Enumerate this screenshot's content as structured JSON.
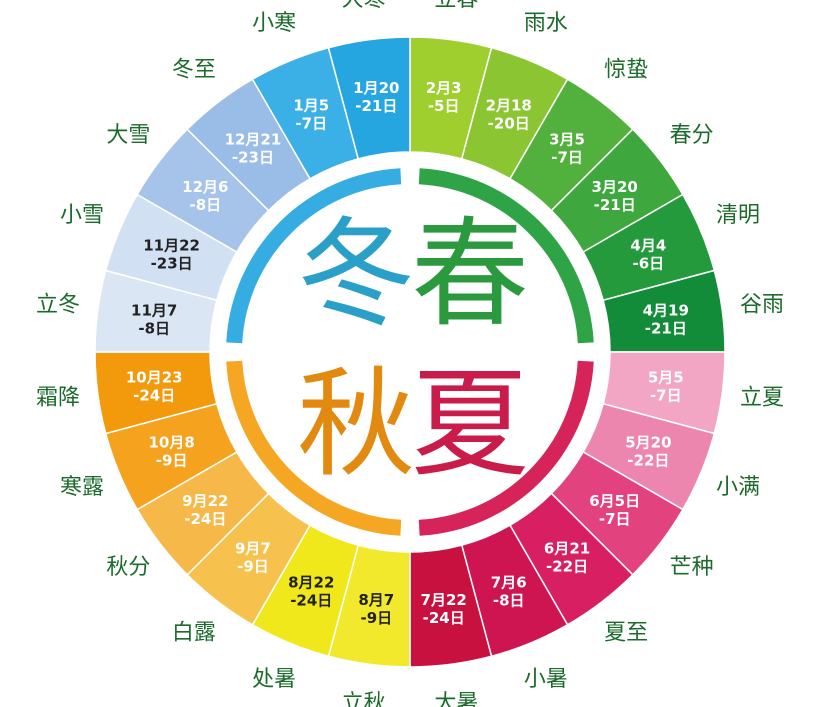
{
  "solar_terms": [
    {
      "name": "立春",
      "date": "2月3\n-5日",
      "color": "#9fce2f",
      "text_color": "#ffffff"
    },
    {
      "name": "雨水",
      "date": "2月18\n-20日",
      "color": "#8cc532",
      "text_color": "#ffffff"
    },
    {
      "name": "惊蛰",
      "date": "3月5\n-7日",
      "color": "#52b03c",
      "text_color": "#ffffff"
    },
    {
      "name": "春分",
      "date": "3月20\n-21日",
      "color": "#3ea73d",
      "text_color": "#ffffff"
    },
    {
      "name": "清明",
      "date": "4月4\n-6日",
      "color": "#249a3c",
      "text_color": "#ffffff"
    },
    {
      "name": "谷雨",
      "date": "4月19\n-21日",
      "color": "#128c39",
      "text_color": "#ffffff"
    },
    {
      "name": "立夏",
      "date": "5月5\n-7日",
      "color": "#f2a6c3",
      "text_color": "#ffffff"
    },
    {
      "name": "小满",
      "date": "5月20\n-22日",
      "color": "#ec86ae",
      "text_color": "#ffffff"
    },
    {
      "name": "芒种",
      "date": "6月5日\n-7日",
      "color": "#e2437f",
      "text_color": "#ffffff"
    },
    {
      "name": "夏至",
      "date": "6月21\n-22日",
      "color": "#d81f61",
      "text_color": "#ffffff"
    },
    {
      "name": "小暑",
      "date": "7月6\n-8日",
      "color": "#cf1452",
      "text_color": "#ffffff"
    },
    {
      "name": "大暑",
      "date": "7月22\n-24日",
      "color": "#c9113f",
      "text_color": "#ffffff"
    },
    {
      "name": "立秋",
      "date": "8月7\n-9日",
      "color": "#f2e92c",
      "text_color": "#222222"
    },
    {
      "name": "处暑",
      "date": "8月22\n-24日",
      "color": "#f0e81a",
      "text_color": "#222222"
    },
    {
      "name": "白露",
      "date": "9月7\n-9日",
      "color": "#f7c14d",
      "text_color": "#ffffff"
    },
    {
      "name": "秋分",
      "date": "9月22\n-24日",
      "color": "#f7b84a",
      "text_color": "#ffffff"
    },
    {
      "name": "寒露",
      "date": "10月8\n-9日",
      "color": "#f5a21f",
      "text_color": "#ffffff"
    },
    {
      "name": "霜降",
      "date": "10月23\n-24日",
      "color": "#f3990c",
      "text_color": "#ffffff"
    },
    {
      "name": "立冬",
      "date": "11月7\n-8日",
      "color": "#dbe6f4",
      "text_color": "#222222"
    },
    {
      "name": "小雪",
      "date": "11月22\n-23日",
      "color": "#d2e0f3",
      "text_color": "#222222"
    },
    {
      "name": "大雪",
      "date": "12月6\n-8日",
      "color": "#a6c3ea",
      "text_color": "#ffffff"
    },
    {
      "name": "冬至",
      "date": "12月21\n-23日",
      "color": "#9abde8",
      "text_color": "#ffffff"
    },
    {
      "name": "小寒",
      "date": "1月5\n-7日",
      "color": "#3bb0e6",
      "text_color": "#ffffff"
    },
    {
      "name": "大寒",
      "date": "1月20\n-21日",
      "color": "#26a6e1",
      "text_color": "#ffffff"
    }
  ],
  "seasons": [
    {
      "char": "冬",
      "color": "#2aa0c9",
      "ring_color": "#35ade3"
    },
    {
      "char": "春",
      "color": "#2b9a3e",
      "ring_color": "#2fa447"
    },
    {
      "char": "秋",
      "color": "#e28a10",
      "ring_color": "#f5a623"
    },
    {
      "char": "夏",
      "color": "#c91c4a",
      "ring_color": "#d6245a"
    }
  ]
}
